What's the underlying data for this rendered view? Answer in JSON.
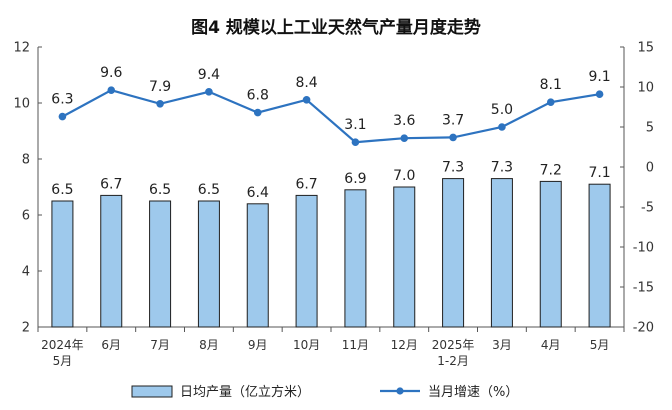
{
  "chart_data": {
    "type": "bar+line",
    "title": "图4  规模以上工业天然气产量月度走势",
    "categories": [
      [
        "2024年",
        "5月"
      ],
      [
        "6月"
      ],
      [
        "7月"
      ],
      [
        "8月"
      ],
      [
        "9月"
      ],
      [
        "10月"
      ],
      [
        "11月"
      ],
      [
        "12月"
      ],
      [
        "2025年",
        "1-2月"
      ],
      [
        "3月"
      ],
      [
        "4月"
      ],
      [
        "5月"
      ]
    ],
    "bar_series": {
      "name": "日均产量（亿立方米）",
      "values": [
        6.5,
        6.7,
        6.5,
        6.5,
        6.4,
        6.7,
        6.9,
        7.0,
        7.3,
        7.3,
        7.2,
        7.1
      ],
      "labels": [
        "6.5",
        "6.7",
        "6.5",
        "6.5",
        "6.4",
        "6.7",
        "6.9",
        "7.0",
        "7.3",
        "7.3",
        "7.2",
        "7.1"
      ],
      "color": "#9ec9ec",
      "border": "#1f1f1f"
    },
    "line_series": {
      "name": "当月增速（%）",
      "values": [
        6.3,
        9.6,
        7.9,
        9.4,
        6.8,
        8.4,
        3.1,
        3.6,
        3.7,
        5.0,
        8.1,
        9.1
      ],
      "labels": [
        "6.3",
        "9.6",
        "7.9",
        "9.4",
        "6.8",
        "8.4",
        "3.1",
        "3.6",
        "3.7",
        "5.0",
        "8.1",
        "9.1"
      ],
      "color": "#2d73c0"
    },
    "left_axis": {
      "ylim": [
        2,
        12
      ],
      "ticks": [
        2,
        4,
        6,
        8,
        10,
        12
      ]
    },
    "right_axis": {
      "ylim": [
        -20,
        15
      ],
      "ticks": [
        -20,
        -15,
        -10,
        -5,
        0,
        5,
        10,
        15
      ]
    },
    "grid": false,
    "legend_position": "bottom"
  }
}
